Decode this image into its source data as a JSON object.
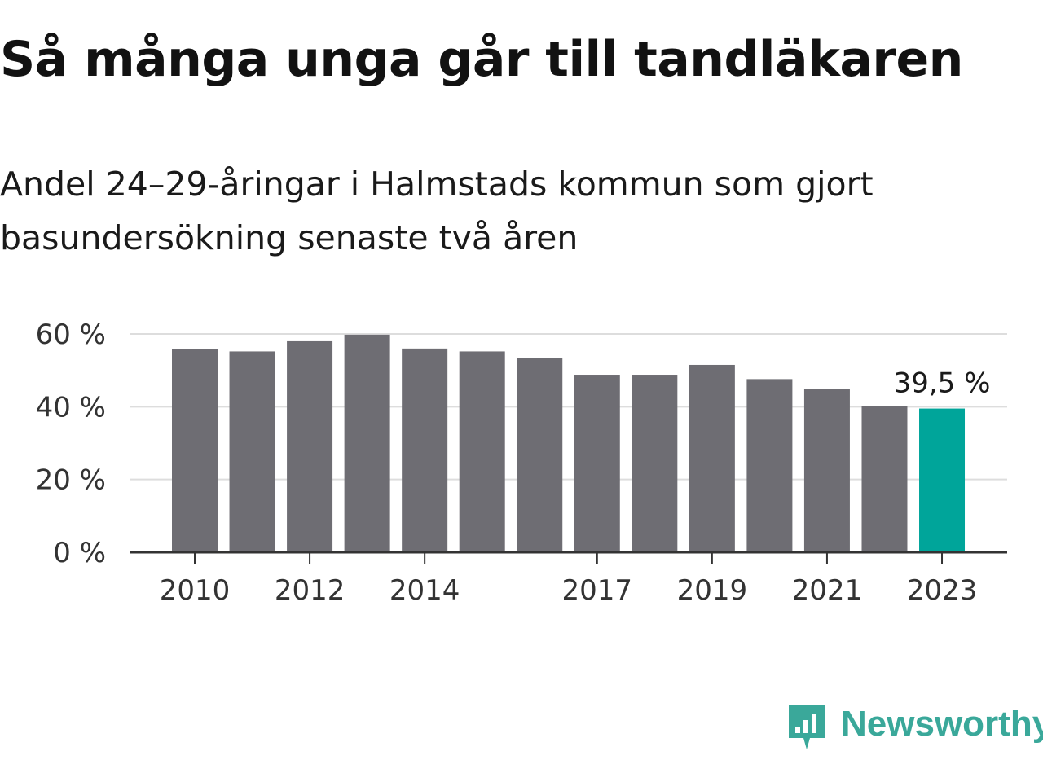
{
  "title": "Så många unga går till tandläkaren",
  "subtitle": "Andel 24–29-åringar i Halmstads kommun som gjort basundersökning senaste två åren",
  "brand": {
    "name": "Newsworthy",
    "icon": "newsworthy-logo-icon",
    "color": "#3aa89a"
  },
  "colors": {
    "bar": "#6e6d73",
    "highlight": "#00a59a",
    "grid": "#dddddd",
    "axis": "#333333"
  },
  "chart_data": {
    "type": "bar",
    "categories": [
      "2010",
      "2011",
      "2012",
      "2013",
      "2014",
      "2015",
      "2016",
      "2017",
      "2018",
      "2019",
      "2020",
      "2021",
      "2022",
      "2023"
    ],
    "values": [
      55.8,
      55.2,
      58.0,
      59.8,
      56.0,
      55.2,
      53.4,
      48.8,
      48.8,
      51.5,
      47.6,
      44.8,
      40.2,
      39.5
    ],
    "x_tick_labels": [
      "2010",
      "2012",
      "2014",
      "2017",
      "2019",
      "2021",
      "2023"
    ],
    "y_ticks": [
      0,
      20,
      40,
      60
    ],
    "y_tick_labels": [
      "0 %",
      "20 %",
      "40 %",
      "60 %"
    ],
    "ylim": [
      0,
      60
    ],
    "highlight": {
      "category": "2023",
      "label": "39,5 %"
    },
    "grid": true,
    "legend": false,
    "xlabel": "",
    "ylabel": ""
  }
}
